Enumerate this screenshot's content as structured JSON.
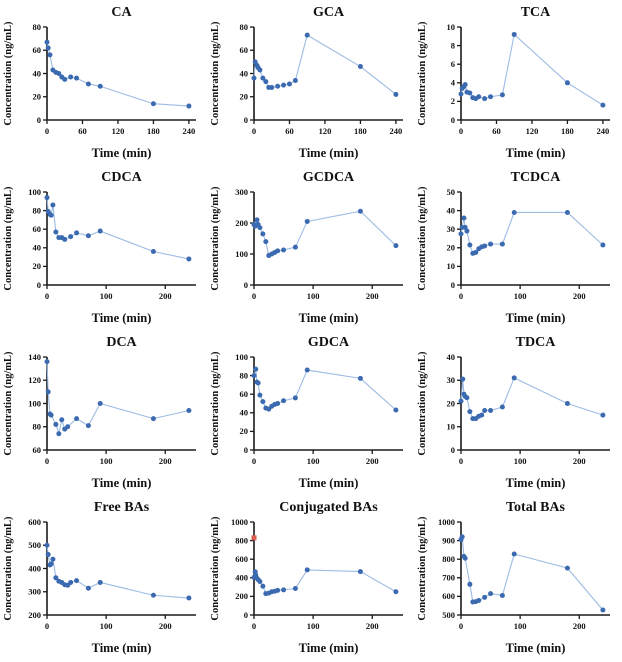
{
  "figure": {
    "xlabel": "Time (min)",
    "ylabel": "Concentration (ng/mL)"
  },
  "style": {
    "marker_color": "#3b6ab0",
    "line_color": "#9dbbe3",
    "axis_color": "#1a1a1a",
    "outlier_color": "#d96050",
    "background": "#ffffff"
  },
  "chart_data": [
    {
      "id": "ca",
      "type": "line",
      "title": "CA",
      "xlabel": "Time (min)",
      "ylabel": "Concentration (ng/mL)",
      "xlim": [
        0,
        252
      ],
      "xticks": [
        0,
        60,
        120,
        180,
        240
      ],
      "ylim": [
        0,
        80
      ],
      "yticks": [
        0,
        20,
        40,
        60,
        80
      ],
      "x": [
        0,
        2,
        5,
        10,
        15,
        20,
        25,
        30,
        40,
        50,
        70,
        90,
        180,
        240
      ],
      "y": [
        67,
        62,
        56,
        43,
        41,
        40,
        37,
        35,
        37,
        36,
        31,
        29,
        14,
        12
      ]
    },
    {
      "id": "gca",
      "type": "line",
      "title": "GCA",
      "xlabel": "Time (min)",
      "ylabel": "Concentration (ng/mL)",
      "xlim": [
        0,
        252
      ],
      "xticks": [
        0,
        60,
        120,
        180,
        240
      ],
      "ylim": [
        0,
        80
      ],
      "yticks": [
        0,
        20,
        40,
        60,
        80
      ],
      "x": [
        0,
        2,
        5,
        7,
        10,
        15,
        20,
        25,
        30,
        40,
        50,
        60,
        70,
        90,
        180,
        240
      ],
      "y": [
        36,
        50,
        47,
        45,
        43,
        36,
        33,
        28,
        28,
        29,
        30,
        31,
        34,
        73,
        46,
        22
      ]
    },
    {
      "id": "tca",
      "type": "line",
      "title": "TCA",
      "xlabel": "Time (min)",
      "ylabel": "Concentration (ng/mL)",
      "xlim": [
        0,
        252
      ],
      "xticks": [
        0,
        60,
        120,
        180,
        240
      ],
      "ylim": [
        0,
        10
      ],
      "yticks": [
        0,
        2,
        4,
        6,
        8,
        10
      ],
      "x": [
        0,
        2,
        5,
        7,
        10,
        15,
        20,
        25,
        30,
        40,
        50,
        70,
        90,
        180,
        240
      ],
      "y": [
        2.8,
        3.4,
        3.6,
        3.8,
        3.0,
        2.9,
        2.4,
        2.3,
        2.5,
        2.3,
        2.5,
        2.7,
        9.2,
        4.0,
        1.6
      ]
    },
    {
      "id": "cdca",
      "type": "line",
      "title": "CDCA",
      "xlabel": "Time (min)",
      "ylabel": "Concentration (ng/mL)",
      "xlim": [
        0,
        252
      ],
      "xticks": [
        0,
        100,
        200
      ],
      "ylim": [
        0,
        100
      ],
      "yticks": [
        0,
        20,
        40,
        60,
        80,
        100
      ],
      "x": [
        0,
        2,
        5,
        7,
        10,
        15,
        20,
        25,
        30,
        40,
        50,
        70,
        90,
        180,
        240
      ],
      "y": [
        94,
        79,
        76,
        75,
        86,
        57,
        51,
        51,
        49,
        52,
        56,
        53,
        58,
        36,
        28
      ]
    },
    {
      "id": "gcdca",
      "type": "line",
      "title": "GCDCA",
      "xlabel": "Time (min)",
      "ylabel": "Concentration (ng/mL)",
      "xlim": [
        0,
        252
      ],
      "xticks": [
        0,
        100,
        200
      ],
      "ylim": [
        0,
        300
      ],
      "yticks": [
        0,
        100,
        200,
        300
      ],
      "x": [
        0,
        2,
        5,
        7,
        10,
        15,
        20,
        25,
        30,
        35,
        40,
        50,
        70,
        90,
        180,
        240
      ],
      "y": [
        195,
        190,
        210,
        195,
        185,
        165,
        140,
        95,
        100,
        105,
        110,
        113,
        122,
        205,
        238,
        127
      ]
    },
    {
      "id": "tcdca",
      "type": "line",
      "title": "TCDCA",
      "xlabel": "Time (min)",
      "ylabel": "Concentration (ng/mL)",
      "xlim": [
        0,
        252
      ],
      "xticks": [
        0,
        100,
        200
      ],
      "ylim": [
        0,
        50
      ],
      "yticks": [
        0,
        10,
        20,
        30,
        40,
        50
      ],
      "x": [
        0,
        2,
        5,
        7,
        10,
        15,
        20,
        25,
        30,
        35,
        40,
        50,
        70,
        90,
        180,
        240
      ],
      "y": [
        27.5,
        31,
        36,
        31,
        29,
        21.5,
        17,
        17.5,
        19.5,
        20.5,
        21,
        22,
        22,
        39,
        39,
        21.5
      ]
    },
    {
      "id": "dca",
      "type": "line",
      "title": "DCA",
      "xlabel": "Time (min)",
      "ylabel": "Concentration (ng/mL)",
      "xlim": [
        0,
        252
      ],
      "xticks": [
        0,
        100,
        200
      ],
      "ylim": [
        60,
        140
      ],
      "yticks": [
        60,
        80,
        100,
        120,
        140
      ],
      "x": [
        0,
        2,
        5,
        7,
        15,
        20,
        25,
        30,
        35,
        50,
        70,
        90,
        180,
        240
      ],
      "y": [
        136,
        110,
        91,
        90,
        82,
        74,
        86,
        78,
        80,
        87,
        81,
        100,
        87,
        94
      ]
    },
    {
      "id": "gdca",
      "type": "line",
      "title": "GDCA",
      "xlabel": "Time (min)",
      "ylabel": "Concentration (ng/mL)",
      "xlim": [
        0,
        252
      ],
      "xticks": [
        0,
        100,
        200
      ],
      "ylim": [
        0,
        100
      ],
      "yticks": [
        0,
        20,
        40,
        60,
        80,
        100
      ],
      "x": [
        0,
        3,
        5,
        7,
        10,
        15,
        20,
        25,
        30,
        35,
        40,
        50,
        70,
        90,
        180,
        240
      ],
      "y": [
        80,
        87,
        73,
        72,
        59,
        52,
        45,
        44,
        47,
        49,
        50,
        53,
        56,
        86,
        77,
        43
      ]
    },
    {
      "id": "tdca",
      "type": "line",
      "title": "TDCA",
      "xlabel": "Time (min)",
      "ylabel": "Concentration (ng/mL)",
      "xlim": [
        0,
        252
      ],
      "xticks": [
        0,
        100,
        200
      ],
      "ylim": [
        0,
        40
      ],
      "yticks": [
        0,
        10,
        20,
        30,
        40
      ],
      "x": [
        0,
        3,
        5,
        7,
        10,
        15,
        20,
        25,
        30,
        35,
        40,
        50,
        70,
        90,
        180,
        240
      ],
      "y": [
        21,
        30.5,
        24,
        23,
        22.5,
        16.5,
        13.5,
        13.5,
        14.5,
        15,
        17,
        17,
        18.5,
        31,
        20,
        15
      ]
    },
    {
      "id": "free-bas",
      "type": "line",
      "title": "Free BAs",
      "xlabel": "Time (min)",
      "ylabel": "Concentration (ng/mL)",
      "xlim": [
        0,
        252
      ],
      "xticks": [
        0,
        100,
        200
      ],
      "ylim": [
        200,
        600
      ],
      "yticks": [
        200,
        300,
        400,
        500,
        600
      ],
      "x": [
        0,
        2,
        5,
        7,
        10,
        15,
        20,
        25,
        30,
        35,
        40,
        50,
        70,
        90,
        180,
        240
      ],
      "y": [
        500,
        460,
        415,
        420,
        440,
        360,
        345,
        340,
        330,
        328,
        340,
        348,
        315,
        340,
        285,
        273
      ]
    },
    {
      "id": "conjugated-bas",
      "type": "line",
      "title": "Conjugated BAs",
      "xlabel": "Time (min)",
      "ylabel": "Concentration (ng/mL)",
      "xlim": [
        0,
        252
      ],
      "xticks": [
        0,
        100,
        200
      ],
      "ylim": [
        0,
        1000
      ],
      "yticks": [
        0,
        200,
        400,
        600,
        800,
        1000
      ],
      "x": [
        0,
        2,
        3,
        5,
        7,
        10,
        15,
        20,
        25,
        30,
        35,
        40,
        50,
        70,
        90,
        180,
        240
      ],
      "y": [
        405,
        465,
        430,
        395,
        380,
        360,
        310,
        230,
        235,
        250,
        255,
        265,
        270,
        285,
        485,
        467,
        250
      ],
      "outlier_points": [
        {
          "x": 0,
          "y": 830
        }
      ]
    },
    {
      "id": "total-bas",
      "type": "line",
      "title": "Total BAs",
      "xlabel": "Time (min)",
      "ylabel": "Concentration (ng/mL)",
      "xlim": [
        0,
        252
      ],
      "xticks": [
        0,
        100,
        200
      ],
      "ylim": [
        500,
        1000
      ],
      "yticks": [
        500,
        600,
        700,
        800,
        900,
        1000
      ],
      "x": [
        0,
        2,
        5,
        7,
        15,
        20,
        25,
        30,
        40,
        50,
        70,
        90,
        180,
        240
      ],
      "y": [
        905,
        920,
        815,
        805,
        665,
        570,
        572,
        578,
        595,
        615,
        605,
        828,
        752,
        527
      ]
    }
  ]
}
